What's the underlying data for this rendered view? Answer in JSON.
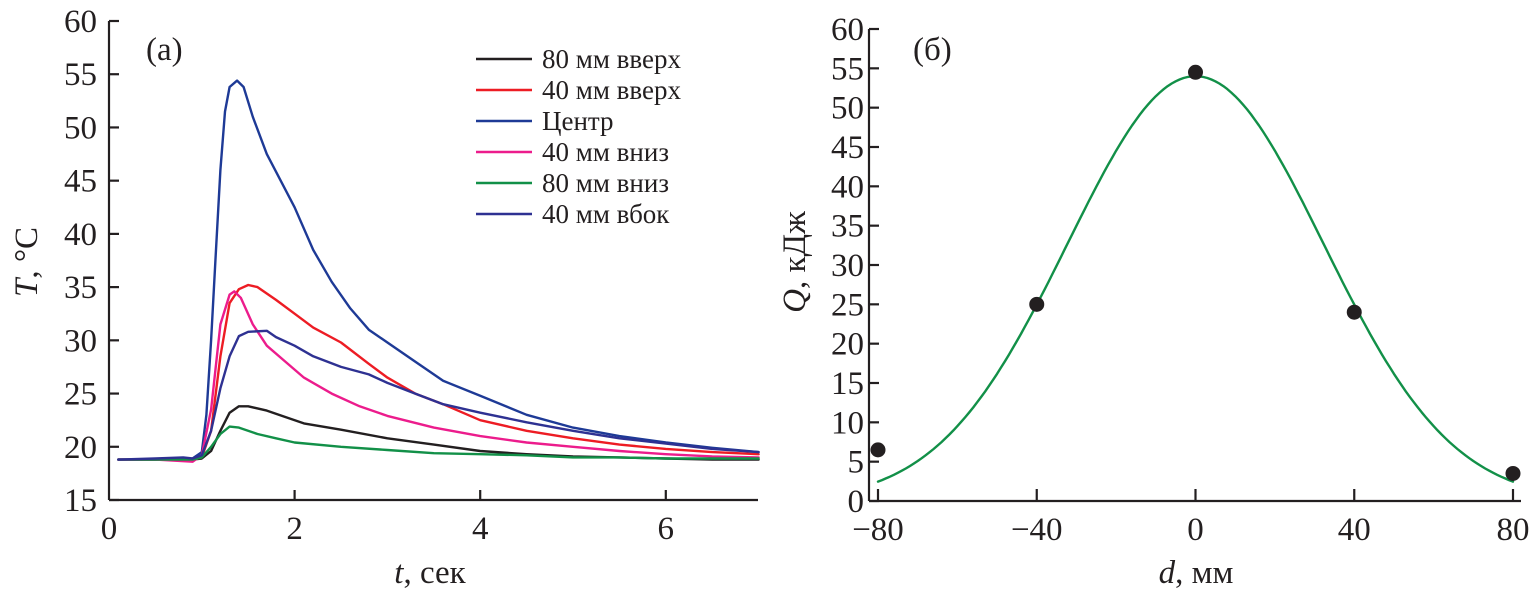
{
  "chart_data": [
    {
      "type": "line",
      "panel_label": "(a)",
      "title": "",
      "xlabel": "t",
      "xlabel_unit": ", сек",
      "ylabel": "T",
      "ylabel_unit": ", °C",
      "xlim": [
        0,
        7
      ],
      "ylim": [
        15,
        60
      ],
      "xticks": [
        0,
        2,
        4,
        6
      ],
      "yticks": [
        15,
        20,
        25,
        30,
        35,
        40,
        45,
        50,
        55,
        60
      ],
      "grid": false,
      "legend_position": "top-right",
      "series": [
        {
          "name": "80 мм вверх",
          "color": "#231f20",
          "points": [
            [
              0.1,
              18.8
            ],
            [
              0.5,
              18.8
            ],
            [
              0.9,
              18.8
            ],
            [
              1.0,
              18.9
            ],
            [
              1.1,
              19.6
            ],
            [
              1.2,
              21.5
            ],
            [
              1.3,
              23.2
            ],
            [
              1.4,
              23.8
            ],
            [
              1.5,
              23.8
            ],
            [
              1.7,
              23.4
            ],
            [
              1.9,
              22.8
            ],
            [
              2.1,
              22.2
            ],
            [
              2.5,
              21.6
            ],
            [
              3.0,
              20.8
            ],
            [
              3.5,
              20.2
            ],
            [
              4.0,
              19.6
            ],
            [
              4.5,
              19.3
            ],
            [
              5.0,
              19.1
            ],
            [
              5.5,
              19.0
            ],
            [
              6.0,
              18.9
            ],
            [
              6.5,
              18.8
            ],
            [
              7.0,
              18.8
            ]
          ]
        },
        {
          "name": "40 мм вверх",
          "color": "#ed1c24",
          "points": [
            [
              0.1,
              18.8
            ],
            [
              0.5,
              18.8
            ],
            [
              0.9,
              18.8
            ],
            [
              1.0,
              19.0
            ],
            [
              1.1,
              21.5
            ],
            [
              1.2,
              28.5
            ],
            [
              1.3,
              33.5
            ],
            [
              1.4,
              34.8
            ],
            [
              1.5,
              35.2
            ],
            [
              1.6,
              35.0
            ],
            [
              1.8,
              33.8
            ],
            [
              2.0,
              32.5
            ],
            [
              2.2,
              31.2
            ],
            [
              2.5,
              29.8
            ],
            [
              2.8,
              27.8
            ],
            [
              3.0,
              26.5
            ],
            [
              3.3,
              25.0
            ],
            [
              3.6,
              24.0
            ],
            [
              4.0,
              22.5
            ],
            [
              4.5,
              21.5
            ],
            [
              5.0,
              20.8
            ],
            [
              5.5,
              20.2
            ],
            [
              6.0,
              19.8
            ],
            [
              6.5,
              19.5
            ],
            [
              7.0,
              19.3
            ]
          ]
        },
        {
          "name": "Центр",
          "color": "#1e3a96",
          "points": [
            [
              0.1,
              18.8
            ],
            [
              0.5,
              18.8
            ],
            [
              0.9,
              18.9
            ],
            [
              1.0,
              19.5
            ],
            [
              1.05,
              23.0
            ],
            [
              1.1,
              30.0
            ],
            [
              1.15,
              38.0
            ],
            [
              1.2,
              46.0
            ],
            [
              1.25,
              51.5
            ],
            [
              1.3,
              53.8
            ],
            [
              1.38,
              54.4
            ],
            [
              1.45,
              53.8
            ],
            [
              1.55,
              51.0
            ],
            [
              1.7,
              47.5
            ],
            [
              1.85,
              45.0
            ],
            [
              2.0,
              42.5
            ],
            [
              2.2,
              38.5
            ],
            [
              2.4,
              35.5
            ],
            [
              2.6,
              33.0
            ],
            [
              2.8,
              31.0
            ],
            [
              3.0,
              29.8
            ],
            [
              3.3,
              28.0
            ],
            [
              3.6,
              26.2
            ],
            [
              4.0,
              24.8
            ],
            [
              4.5,
              23.0
            ],
            [
              5.0,
              21.8
            ],
            [
              5.5,
              21.0
            ],
            [
              6.0,
              20.4
            ],
            [
              6.5,
              19.9
            ],
            [
              7.0,
              19.5
            ]
          ]
        },
        {
          "name": "40 мм вниз",
          "color": "#ec1c8c",
          "points": [
            [
              0.1,
              18.8
            ],
            [
              0.5,
              18.8
            ],
            [
              0.9,
              18.6
            ],
            [
              1.0,
              19.2
            ],
            [
              1.1,
              23.5
            ],
            [
              1.2,
              31.5
            ],
            [
              1.3,
              34.3
            ],
            [
              1.35,
              34.6
            ],
            [
              1.42,
              34.0
            ],
            [
              1.55,
              31.5
            ],
            [
              1.7,
              29.5
            ],
            [
              1.9,
              28.0
            ],
            [
              2.1,
              26.5
            ],
            [
              2.4,
              25.0
            ],
            [
              2.7,
              23.8
            ],
            [
              3.0,
              22.9
            ],
            [
              3.5,
              21.8
            ],
            [
              4.0,
              21.0
            ],
            [
              4.5,
              20.4
            ],
            [
              5.0,
              20.0
            ],
            [
              5.5,
              19.6
            ],
            [
              6.0,
              19.3
            ],
            [
              6.5,
              19.1
            ],
            [
              7.0,
              19.0
            ]
          ]
        },
        {
          "name": "80 мм вниз",
          "color": "#129048",
          "points": [
            [
              0.1,
              18.8
            ],
            [
              0.5,
              18.8
            ],
            [
              0.9,
              18.8
            ],
            [
              1.0,
              19.0
            ],
            [
              1.1,
              20.0
            ],
            [
              1.2,
              21.2
            ],
            [
              1.3,
              21.9
            ],
            [
              1.4,
              21.8
            ],
            [
              1.6,
              21.2
            ],
            [
              1.8,
              20.8
            ],
            [
              2.0,
              20.4
            ],
            [
              2.5,
              20.0
            ],
            [
              3.0,
              19.7
            ],
            [
              3.5,
              19.4
            ],
            [
              4.0,
              19.3
            ],
            [
              4.5,
              19.2
            ],
            [
              5.0,
              19.0
            ],
            [
              5.5,
              19.0
            ],
            [
              6.0,
              18.9
            ],
            [
              6.5,
              18.9
            ],
            [
              7.0,
              18.9
            ]
          ]
        },
        {
          "name": "40 мм вбок",
          "color": "#2e3192",
          "points": [
            [
              0.1,
              18.8
            ],
            [
              0.5,
              18.9
            ],
            [
              0.8,
              19.0
            ],
            [
              0.9,
              18.9
            ],
            [
              1.0,
              19.2
            ],
            [
              1.1,
              21.5
            ],
            [
              1.2,
              25.5
            ],
            [
              1.3,
              28.5
            ],
            [
              1.4,
              30.4
            ],
            [
              1.5,
              30.8
            ],
            [
              1.7,
              30.9
            ],
            [
              1.8,
              30.3
            ],
            [
              2.0,
              29.5
            ],
            [
              2.2,
              28.5
            ],
            [
              2.5,
              27.5
            ],
            [
              2.8,
              26.8
            ],
            [
              3.0,
              26.0
            ],
            [
              3.3,
              25.0
            ],
            [
              3.6,
              24.0
            ],
            [
              4.0,
              23.2
            ],
            [
              4.5,
              22.3
            ],
            [
              5.0,
              21.5
            ],
            [
              5.5,
              20.8
            ],
            [
              6.0,
              20.3
            ],
            [
              6.5,
              19.8
            ],
            [
              7.0,
              19.5
            ]
          ]
        }
      ]
    },
    {
      "type": "scatter",
      "panel_label": "(б)",
      "title": "",
      "xlabel": "d",
      "xlabel_unit": ", мм",
      "ylabel": "Q",
      "ylabel_unit": ", кДж",
      "xlim": [
        -80,
        80
      ],
      "ylim": [
        0,
        60
      ],
      "xticks": [
        -80,
        -40,
        0,
        40,
        80
      ],
      "yticks": [
        0,
        5,
        10,
        15,
        20,
        25,
        30,
        35,
        40,
        45,
        50,
        55,
        60
      ],
      "grid": false,
      "points": {
        "x": [
          -80,
          -40,
          0,
          40,
          80
        ],
        "y": [
          6.5,
          25.0,
          54.5,
          24.0,
          3.5
        ],
        "color": "#231f20"
      },
      "fit": {
        "type": "gaussian",
        "amplitude": 54.0,
        "center": 0,
        "sigma": 32.2,
        "x_range": [
          -80,
          80
        ],
        "color": "#129048"
      }
    }
  ]
}
